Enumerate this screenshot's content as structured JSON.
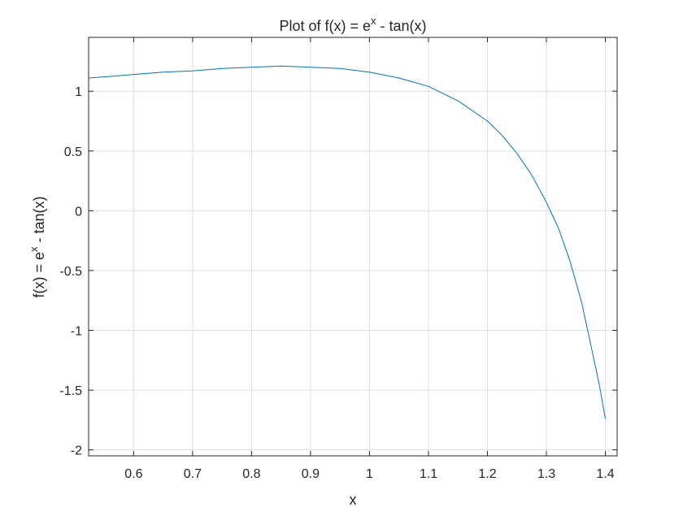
{
  "chart_data": {
    "type": "line",
    "title": "Plot of f(x) = e",
    "title_sup": "x",
    "title_tail": " - tan(x)",
    "xlabel": "x",
    "ylabel": "f(x) = e",
    "ylabel_sup": "x",
    "ylabel_tail": " - tan(x)",
    "xlim": [
      0.5236,
      1.42
    ],
    "ylim": [
      -2.05,
      1.45
    ],
    "xticks": [
      0.6,
      0.7,
      0.8,
      0.9,
      1,
      1.1,
      1.2,
      1.3,
      1.4
    ],
    "xtick_labels": [
      "0.6",
      "0.7",
      "0.8",
      "0.9",
      "1",
      "1.1",
      "1.2",
      "1.3",
      "1.4"
    ],
    "yticks": [
      1,
      0.5,
      0,
      -0.5,
      -1,
      -1.5,
      -2
    ],
    "ytick_labels": [
      "1",
      "0.5",
      "0",
      "-0.5",
      "-1",
      "-1.5",
      "-2"
    ],
    "grid": true,
    "series": [
      {
        "color": "#0072bd",
        "x": [
          0.5236,
          0.55,
          0.6,
          0.65,
          0.7,
          0.75,
          0.8,
          0.85,
          0.9,
          0.95,
          1.0,
          1.05,
          1.1,
          1.15,
          1.2,
          1.225,
          1.25,
          1.275,
          1.3,
          1.32,
          1.34,
          1.36,
          1.38,
          1.39,
          1.4
        ],
        "y": [
          1.11,
          1.12,
          1.14,
          1.16,
          1.17,
          1.19,
          1.2,
          1.21,
          1.2,
          1.19,
          1.16,
          1.11,
          1.04,
          0.92,
          0.75,
          0.63,
          0.48,
          0.3,
          0.07,
          -0.14,
          -0.42,
          -0.77,
          -1.23,
          -1.46,
          -1.74
        ]
      }
    ]
  }
}
